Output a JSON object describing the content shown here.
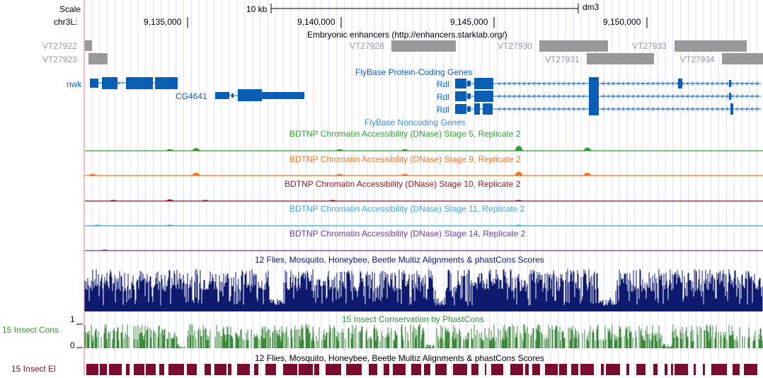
{
  "header": {
    "scale_label": "Scale",
    "chrom_label": "chr3L:",
    "scale_bar_label": "10 kb",
    "assembly": "dm3",
    "positions": [
      "9,135,000",
      "9,140,000",
      "9,145,000",
      "9,150,000"
    ]
  },
  "tracks": {
    "enhancers": {
      "title": "Embryonic enhancers (http://enhancers.starklab.org/)",
      "color": "#999999",
      "items": [
        "VT27922",
        "VT27923",
        "VT27928",
        "VT27930",
        "VT27931",
        "VT27933",
        "VT27934"
      ]
    },
    "protein_coding": {
      "title": "FlyBase Protein-Coding Genes",
      "color": "#0a5fb4",
      "genes": [
        "nwk",
        "CG4641",
        "Rdl",
        "Rdl",
        "Rdl"
      ]
    },
    "noncoding": {
      "title": "FlyBase Noncoding Genes",
      "color": "#3f8fcf"
    },
    "dnase": [
      {
        "title": "BDTNP Chromatin Accessibility (DNase) Stage 5, Replicate 2",
        "color": "#33a02c"
      },
      {
        "title": "BDTNP Chromatin Accessibility (DNase) Stage 9, Replicate 2",
        "color": "#f0731e"
      },
      {
        "title": "BDTNP Chromatin Accessibility (DNase) Stage 10, Replicate 2",
        "color": "#8b1a1a"
      },
      {
        "title": "BDTNP Chromatin Accessibility (DNase) Stage 11, Replicate 2",
        "color": "#3fa6d2"
      },
      {
        "title": "BDTNP Chromatin Accessibility (DNase) Stage 14, Replicate 2",
        "color": "#6a3d9a"
      }
    ],
    "multiz": {
      "title": "12 Flies, Mosquito, Honeybee, Beetle Multiz Alignments & phastCons Scores",
      "color": "#0d1a6e"
    },
    "phastcons": {
      "title": "15 Insect Conservation by PhastCons",
      "side_label": "15 Insect Cons",
      "scale_max": "1",
      "scale_min": "0",
      "color": "#3c8a3c"
    },
    "elements": {
      "title": "12 Flies, Mosquito, Honeybee, Beetle Multiz Alignments & phastCons Scores",
      "side_label": "15 Insect El",
      "color": "#7a0d2d"
    }
  }
}
